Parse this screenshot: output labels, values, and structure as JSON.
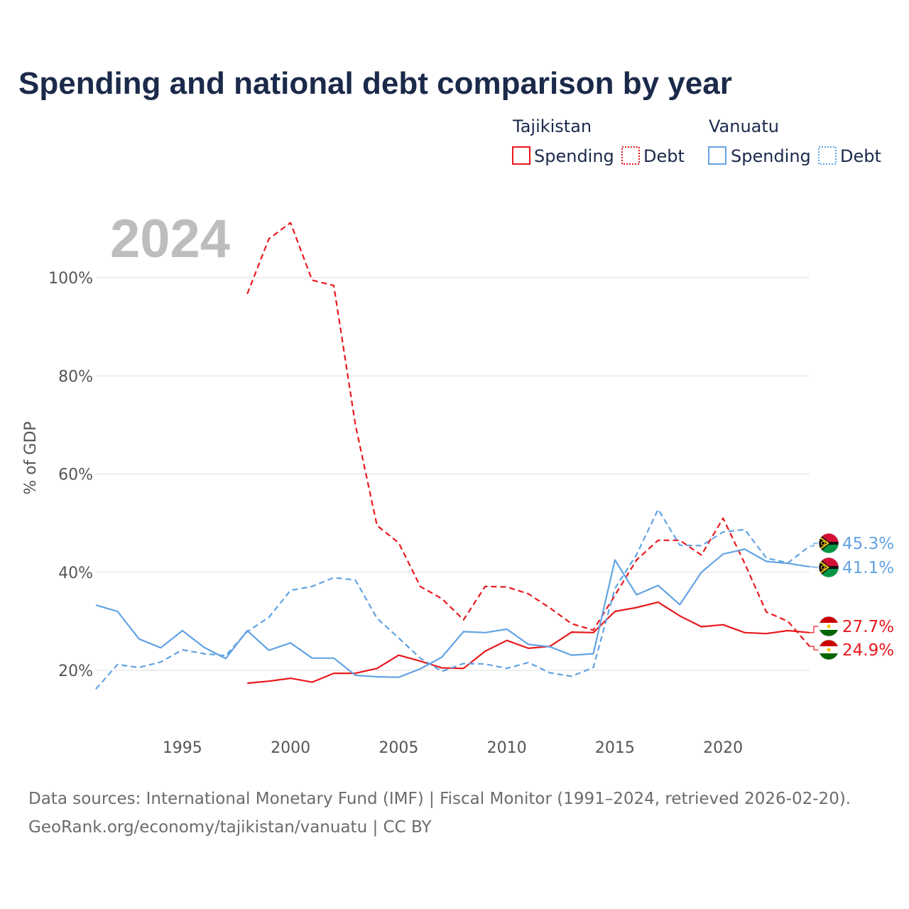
{
  "colors": {
    "tajikistan": "#e8191d",
    "vanuatu": "#62a3e3",
    "grid": "#e4e4e4",
    "title": "#1b2a4a"
  },
  "chart_data": {
    "type": "line",
    "title": "Spending and national debt comparison by year",
    "year_watermark": "2024",
    "ylabel": "% of GDP",
    "xlim": [
      1991,
      2024
    ],
    "ylim": [
      10,
      115
    ],
    "x_ticks": [
      1995,
      2000,
      2005,
      2010,
      2015,
      2020
    ],
    "y_ticks": [
      {
        "value": 20,
        "label": "20%"
      },
      {
        "value": 40,
        "label": "40%"
      },
      {
        "value": 60,
        "label": "60%"
      },
      {
        "value": 80,
        "label": "80%"
      },
      {
        "value": 100,
        "label": "100%"
      }
    ],
    "legend": {
      "groups": [
        {
          "country": "Tajikistan",
          "color_key": "tajikistan",
          "items": [
            "Spending",
            "Debt"
          ]
        },
        {
          "country": "Vanuatu",
          "color_key": "vanuatu",
          "items": [
            "Spending",
            "Debt"
          ]
        }
      ]
    },
    "series": [
      {
        "name": "Tajikistan Spending",
        "country": "Tajikistan",
        "kind": "spending",
        "color_key": "tajikistan",
        "x": [
          1998,
          1999,
          2000,
          2001,
          2002,
          2003,
          2004,
          2005,
          2006,
          2007,
          2008,
          2009,
          2010,
          2011,
          2012,
          2013,
          2014,
          2015,
          2016,
          2017,
          2018,
          2019,
          2020,
          2021,
          2022,
          2023,
          2024
        ],
        "values": [
          17.4,
          17.8,
          18.4,
          17.6,
          19.4,
          19.4,
          20.4,
          23.1,
          21.9,
          20.5,
          20.4,
          23.9,
          26.1,
          24.5,
          24.9,
          27.8,
          27.7,
          32.0,
          32.8,
          33.9,
          31.1,
          28.9,
          29.3,
          27.7,
          27.5,
          28.1,
          27.7
        ],
        "end_label": "27.7%"
      },
      {
        "name": "Tajikistan Debt",
        "country": "Tajikistan",
        "kind": "debt",
        "color_key": "tajikistan",
        "x": [
          1998,
          1999,
          2000,
          2001,
          2002,
          2003,
          2004,
          2005,
          2006,
          2007,
          2008,
          2009,
          2010,
          2011,
          2012,
          2013,
          2014,
          2015,
          2016,
          2017,
          2018,
          2019,
          2020,
          2021,
          2022,
          2023,
          2024
        ],
        "values": [
          96.7,
          107.9,
          111.2,
          99.5,
          98.4,
          70.0,
          49.5,
          46.0,
          37.1,
          34.6,
          30.3,
          37.1,
          37.0,
          35.6,
          32.7,
          29.5,
          28.2,
          35.3,
          42.5,
          46.5,
          46.5,
          43.5,
          51.0,
          41.8,
          31.9,
          30.0,
          24.9
        ],
        "end_label": "24.9%"
      },
      {
        "name": "Vanuatu Spending",
        "country": "Vanuatu",
        "kind": "spending",
        "color_key": "vanuatu",
        "x": [
          1991,
          1992,
          1993,
          1994,
          1995,
          1996,
          1997,
          1998,
          1999,
          2000,
          2001,
          2002,
          2003,
          2004,
          2005,
          2006,
          2007,
          2008,
          2009,
          2010,
          2011,
          2012,
          2013,
          2014,
          2015,
          2016,
          2017,
          2018,
          2019,
          2020,
          2021,
          2022,
          2023,
          2024
        ],
        "values": [
          33.3,
          32.0,
          26.4,
          24.6,
          28.1,
          24.7,
          22.4,
          28.1,
          24.1,
          25.6,
          22.5,
          22.5,
          19.0,
          18.7,
          18.6,
          20.3,
          22.7,
          27.9,
          27.7,
          28.4,
          25.3,
          24.8,
          23.1,
          23.4,
          42.5,
          35.4,
          37.3,
          33.4,
          40.0,
          43.7,
          44.7,
          42.2,
          41.8,
          41.1
        ],
        "end_label": "41.1%"
      },
      {
        "name": "Vanuatu Debt",
        "country": "Vanuatu",
        "kind": "debt",
        "color_key": "vanuatu",
        "x": [
          1991,
          1992,
          1993,
          1994,
          1995,
          1996,
          1997,
          1998,
          1999,
          2000,
          2001,
          2002,
          2003,
          2004,
          2005,
          2006,
          2007,
          2008,
          2009,
          2010,
          2011,
          2012,
          2013,
          2014,
          2015,
          2016,
          2017,
          2018,
          2019,
          2020,
          2021,
          2022,
          2023,
          2024
        ],
        "values": [
          16.2,
          21.2,
          20.6,
          21.7,
          24.2,
          23.4,
          23.0,
          27.9,
          30.8,
          36.3,
          37.1,
          38.9,
          38.4,
          30.6,
          26.6,
          22.5,
          19.8,
          21.4,
          21.3,
          20.4,
          21.6,
          19.5,
          18.8,
          20.6,
          36.7,
          43.6,
          52.8,
          45.5,
          45.4,
          48.2,
          48.7,
          42.9,
          41.9,
          45.3
        ],
        "end_label": "45.3%"
      }
    ]
  },
  "source": {
    "line1": "Data sources: International Monetary Fund (IMF) | Fiscal Monitor (1991–2024, retrieved 2026-02-20).",
    "line2": "GeoRank.org/economy/tajikistan/vanuatu | CC BY"
  }
}
